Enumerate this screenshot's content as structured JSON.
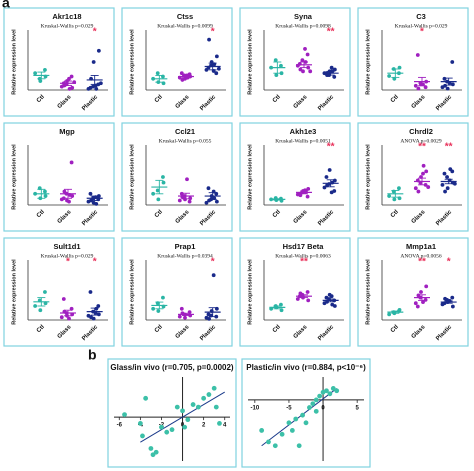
{
  "figure_labels": [
    "a",
    "b"
  ],
  "chart_data": [
    {
      "type": "strip",
      "title": "Akr1c18",
      "subtitle": "Kruskal-Wallis p=0.029",
      "y_label": "Relative expression level",
      "categories": [
        "Ctl",
        "Glass",
        "Plastic"
      ],
      "colors": [
        "#2ab5a5",
        "#a020c0",
        "#1a2a8a"
      ],
      "ylim": [
        0,
        5
      ],
      "groups": [
        [
          1.5,
          1.0,
          0.8,
          1.8,
          1.2
        ],
        [
          0.3,
          0.5,
          0.8,
          1.2,
          0.2,
          0.6,
          0.4,
          1.0,
          0.1,
          0.7
        ],
        [
          0.1,
          0.3,
          2.5,
          0.5,
          3.5,
          0.2,
          1.0,
          0.4,
          0.1,
          0.6
        ]
      ],
      "means": [
        1.3,
        0.6,
        0.9
      ],
      "errors": [
        0.3,
        0.2,
        0.4
      ],
      "annotations": [
        {
          "index": 2,
          "text": "*"
        }
      ]
    },
    {
      "type": "strip",
      "title": "Ctss",
      "subtitle": "Kruskal-Wallis p=0.0099",
      "y_label": "Relative expression level",
      "categories": [
        "Ctl",
        "Glass",
        "Plastic"
      ],
      "colors": [
        "#2ab5a5",
        "#a020c0",
        "#1a2a8a"
      ],
      "ylim": [
        0,
        5
      ],
      "groups": [
        [
          1.0,
          1.5,
          0.7,
          1.2,
          0.6
        ],
        [
          1.1,
          1.3,
          1.0,
          1.4,
          1.2,
          1.5,
          0.9,
          1.3,
          1.1
        ],
        [
          1.8,
          2.2,
          2.5,
          1.5,
          3.0,
          2.0,
          4.5,
          1.7,
          2.3,
          1.9
        ]
      ],
      "means": [
        1.0,
        1.2,
        2.1
      ],
      "errors": [
        0.3,
        0.1,
        0.3
      ],
      "annotations": [
        {
          "index": 2,
          "text": "*"
        }
      ]
    },
    {
      "type": "strip",
      "title": "Syna",
      "subtitle": "Kruskal-Wallis p=0.0098",
      "y_label": "Relative expression level",
      "categories": [
        "Ctl",
        "Glass",
        "Plastic"
      ],
      "colors": [
        "#2ab5a5",
        "#a020c0",
        "#1a2a8a"
      ],
      "ylim": [
        0,
        3
      ],
      "groups": [
        [
          1.2,
          1.6,
          0.8,
          1.3,
          0.9
        ],
        [
          1.3,
          1.6,
          1.0,
          1.9,
          1.2,
          1.4,
          1.1,
          2.2,
          1.5,
          1.0
        ],
        [
          0.9,
          0.8,
          1.0,
          0.7,
          1.1,
          0.9,
          0.8,
          1.2,
          1.0
        ]
      ],
      "means": [
        1.2,
        1.35,
        0.9
      ],
      "errors": [
        0.3,
        0.15,
        0.1
      ],
      "annotations": [
        {
          "index": 2,
          "text": "**"
        }
      ]
    },
    {
      "type": "strip",
      "title": "C3",
      "subtitle": "Kruskal-Wallis p=0.029",
      "y_label": "Relative expression level",
      "categories": [
        "Ctl",
        "Glass",
        "Plastic"
      ],
      "colors": [
        "#2ab5a5",
        "#a020c0",
        "#1a2a8a"
      ],
      "ylim": [
        0,
        4
      ],
      "groups": [
        [
          1.0,
          1.5,
          0.8,
          1.2,
          1.6
        ],
        [
          0.3,
          0.5,
          0.4,
          0.2,
          0.6,
          2.5,
          0.1,
          0.4
        ],
        [
          0.2,
          0.6,
          0.1,
          2.0,
          0.4,
          0.8,
          0.3,
          0.5
        ]
      ],
      "means": [
        1.2,
        0.6,
        0.6
      ],
      "errors": [
        0.3,
        0.3,
        0.25
      ],
      "annotations": [
        {
          "index": 1,
          "text": "*"
        }
      ]
    },
    {
      "type": "strip",
      "title": "Mgp",
      "y_label": "Relative expression level",
      "categories": [
        "Ctl",
        "Glass",
        "Plastic"
      ],
      "colors": [
        "#2ab5a5",
        "#a020c0",
        "#1a2a8a"
      ],
      "ylim": [
        0,
        5
      ],
      "groups": [
        [
          1.0,
          1.5,
          0.6,
          1.2,
          0.8
        ],
        [
          0.5,
          1.0,
          0.4,
          3.8,
          0.8,
          0.6,
          1.2,
          0.3,
          0.9
        ],
        [
          0.3,
          0.6,
          0.2,
          0.5,
          0.8,
          1.0,
          0.4,
          0.7,
          0.1
        ]
      ],
      "means": [
        1.0,
        1.0,
        0.6
      ],
      "errors": [
        0.4,
        0.4,
        0.2
      ]
    },
    {
      "type": "strip",
      "title": "Ccl21",
      "subtitle": "Kruskal-Wallis p=0.055",
      "y_label": "Relative expression level",
      "categories": [
        "Ctl",
        "Glass",
        "Plastic"
      ],
      "colors": [
        "#2ab5a5",
        "#a020c0",
        "#1a2a8a"
      ],
      "ylim": [
        0,
        5
      ],
      "groups": [
        [
          1.0,
          1.3,
          0.5,
          2.5,
          2.0
        ],
        [
          0.4,
          0.8,
          0.5,
          0.3,
          0.6,
          1.0,
          0.7,
          2.3
        ],
        [
          0.2,
          0.5,
          0.8,
          1.0,
          0.3,
          1.5,
          0.4,
          1.2,
          0.6
        ]
      ],
      "means": [
        1.6,
        0.8,
        0.8
      ],
      "errors": [
        0.6,
        0.25,
        0.3
      ]
    },
    {
      "type": "strip",
      "title": "Akh1e3",
      "subtitle": "Kruskal-Wallis p=0.0051",
      "y_label": "Relative expression level",
      "categories": [
        "Ctl",
        "Glass",
        "Plastic"
      ],
      "colors": [
        "#2ab5a5",
        "#a020c0",
        "#1a2a8a"
      ],
      "ylim": [
        0,
        8
      ],
      "groups": [
        [
          0.8,
          1.0,
          0.7,
          0.9,
          0.6
        ],
        [
          1.5,
          1.8,
          2.0,
          1.2,
          2.3,
          1.6,
          1.4,
          2.1,
          1.9
        ],
        [
          2.5,
          3.0,
          5.0,
          2.0,
          3.5,
          4.0,
          2.8,
          1.8,
          3.2
        ]
      ],
      "means": [
        0.8,
        1.8,
        3.1
      ],
      "errors": [
        0.1,
        0.2,
        0.5
      ],
      "annotations": [
        {
          "index": 2,
          "text": "**"
        }
      ]
    },
    {
      "type": "strip",
      "title": "Chrdl2",
      "subtitle": "ANOVA p=0.0029",
      "y_label": "Relative expression level",
      "categories": [
        "Ctl",
        "Glass",
        "Plastic"
      ],
      "colors": [
        "#2ab5a5",
        "#a020c0",
        "#1a2a8a"
      ],
      "ylim": [
        0,
        5
      ],
      "groups": [
        [
          0.8,
          1.2,
          0.5,
          1.5,
          0.6
        ],
        [
          1.5,
          2.0,
          2.5,
          1.8,
          3.0,
          2.2,
          1.2,
          2.8,
          3.5,
          1.6
        ],
        [
          1.8,
          2.5,
          1.5,
          3.0,
          2.0,
          2.8,
          1.2,
          2.2,
          3.2,
          1.9
        ]
      ],
      "means": [
        1.0,
        2.1,
        2.1
      ],
      "errors": [
        0.3,
        0.3,
        0.2
      ],
      "annotations": [
        {
          "index": 1,
          "text": "**"
        },
        {
          "index": 2,
          "text": "**"
        }
      ]
    },
    {
      "type": "strip",
      "title": "Sult1d1",
      "subtitle": "Kruskal-Wallis p=0.029",
      "y_label": "Relative expression level",
      "categories": [
        "Ctl",
        "Glass",
        "Plastic"
      ],
      "colors": [
        "#2ab5a5",
        "#a020c0",
        "#1a2a8a"
      ],
      "ylim": [
        0,
        4
      ],
      "groups": [
        [
          1.0,
          1.4,
          0.7,
          2.0,
          1.2
        ],
        [
          0.2,
          0.5,
          0.3,
          0.8,
          0.4,
          1.5,
          0.6,
          0.1
        ],
        [
          0.3,
          0.6,
          0.1,
          1.0,
          0.4,
          2.0,
          0.2,
          0.5,
          0.8
        ]
      ],
      "means": [
        1.3,
        0.5,
        0.6
      ],
      "errors": [
        0.3,
        0.2,
        0.25
      ],
      "annotations": [
        {
          "index": 1,
          "text": "*"
        },
        {
          "index": 2,
          "text": "*"
        }
      ]
    },
    {
      "type": "strip",
      "title": "Prap1",
      "subtitle": "Kruskal-Wallis p=0.0394",
      "y_label": "Relative expression level",
      "categories": [
        "Ctl",
        "Glass",
        "Plastic"
      ],
      "colors": [
        "#2ab5a5",
        "#a020c0",
        "#1a2a8a"
      ],
      "ylim": [
        0,
        5
      ],
      "groups": [
        [
          1.0,
          1.5,
          0.8,
          2.0,
          1.2
        ],
        [
          0.3,
          0.5,
          0.2,
          0.7,
          0.4,
          1.0,
          0.6
        ],
        [
          0.2,
          0.4,
          0.8,
          0.3,
          1.0,
          0.5,
          0.1,
          4.0
        ]
      ],
      "means": [
        1.3,
        0.5,
        0.7
      ],
      "errors": [
        0.3,
        0.1,
        0.4
      ],
      "annotations": [
        {
          "index": 2,
          "text": "*"
        }
      ]
    },
    {
      "type": "strip",
      "title": "Hsd17 Beta",
      "subtitle": "Kruskal-Wallis p=0.0063",
      "y_label": "Relative expression level",
      "categories": [
        "Ctl",
        "Glass",
        "Plastic"
      ],
      "colors": [
        "#2ab5a5",
        "#a020c0",
        "#1a2a8a"
      ],
      "ylim": [
        0,
        4
      ],
      "groups": [
        [
          0.8,
          1.0,
          0.9,
          1.1,
          0.7
        ],
        [
          1.5,
          1.8,
          1.6,
          2.0,
          1.4,
          1.7,
          1.9
        ],
        [
          1.2,
          1.5,
          1.8,
          1.4,
          1.0,
          1.6,
          1.3,
          1.7,
          1.1
        ]
      ],
      "means": [
        0.9,
        1.7,
        1.4
      ],
      "errors": [
        0.1,
        0.1,
        0.1
      ],
      "annotations": [
        {
          "index": 1,
          "text": "**"
        }
      ]
    },
    {
      "type": "strip",
      "title": "Mmp1a1",
      "subtitle": "ANOVA p=0.0056",
      "y_label": "Relative expression level",
      "categories": [
        "Ctl",
        "Glass",
        "Plastic"
      ],
      "colors": [
        "#2ab5a5",
        "#a020c0",
        "#1a2a8a"
      ],
      "ylim": [
        0,
        5
      ],
      "groups": [
        [
          0.5,
          0.7,
          0.6,
          0.8,
          0.9
        ],
        [
          1.5,
          2.0,
          2.5,
          1.8,
          3.0,
          1.2,
          2.2,
          1.6
        ],
        [
          1.4,
          1.8,
          1.6,
          2.0,
          1.2,
          1.5,
          1.9,
          1.7
        ]
      ],
      "means": [
        0.7,
        2.0,
        1.6
      ],
      "errors": [
        0.1,
        0.25,
        0.1
      ],
      "annotations": [
        {
          "index": 1,
          "text": "**"
        },
        {
          "index": 2,
          "text": "*"
        }
      ]
    },
    {
      "type": "scatter",
      "title": "Glass/in vivo (r=0.705, p=0.0002)",
      "color": "#3cc0a8",
      "line_color": "#1a3a8a",
      "xlim": [
        -6.5,
        4.5
      ],
      "ylim": [
        -3.5,
        3.2
      ],
      "xticks": [
        -6,
        -4,
        -2,
        0,
        2,
        4
      ],
      "x": [
        -5.5,
        -4,
        -3.8,
        -3,
        -2.8,
        -2.5,
        -2,
        -1.5,
        -1,
        -0.5,
        0,
        0.5,
        1,
        1.5,
        2,
        2.5,
        3,
        3.2,
        3.5,
        -3.5,
        0.2
      ],
      "y": [
        0.2,
        -0.5,
        -1.5,
        -2.5,
        -3,
        -2.8,
        -0.8,
        -1.2,
        -1.0,
        0.8,
        0.5,
        -0.2,
        1.0,
        0.8,
        1.5,
        1.8,
        2.3,
        0.8,
        -0.5,
        1.5,
        -0.8
      ],
      "trend_line": {
        "x": [
          -4,
          4
        ],
        "y": [
          -2,
          2
        ]
      }
    },
    {
      "type": "scatter",
      "title": "Plastic/in vivo (r=0.884, p<10⁻⁶)",
      "color": "#3cc0a8",
      "line_color": "#1a3a8a",
      "xlim": [
        -11,
        6
      ],
      "ylim": [
        -8,
        3
      ],
      "xticks": [
        -10,
        -5,
        0,
        5
      ],
      "x": [
        -9,
        -8,
        -7,
        -6,
        -5,
        -4.5,
        -4,
        -3,
        -2.5,
        -2,
        -1.5,
        -1,
        -0.5,
        0,
        0.5,
        1,
        1.5,
        2,
        -3.5,
        -1
      ],
      "y": [
        -4,
        -5.5,
        -6,
        -4.5,
        -3,
        -4,
        -2.5,
        -2,
        -3,
        -1,
        -0.5,
        0,
        0.5,
        1,
        1.2,
        0.8,
        1.5,
        1.2,
        -6,
        -1.5
      ],
      "trend_line": {
        "x": [
          -9,
          2
        ],
        "y": [
          -6,
          1.5
        ]
      }
    }
  ]
}
